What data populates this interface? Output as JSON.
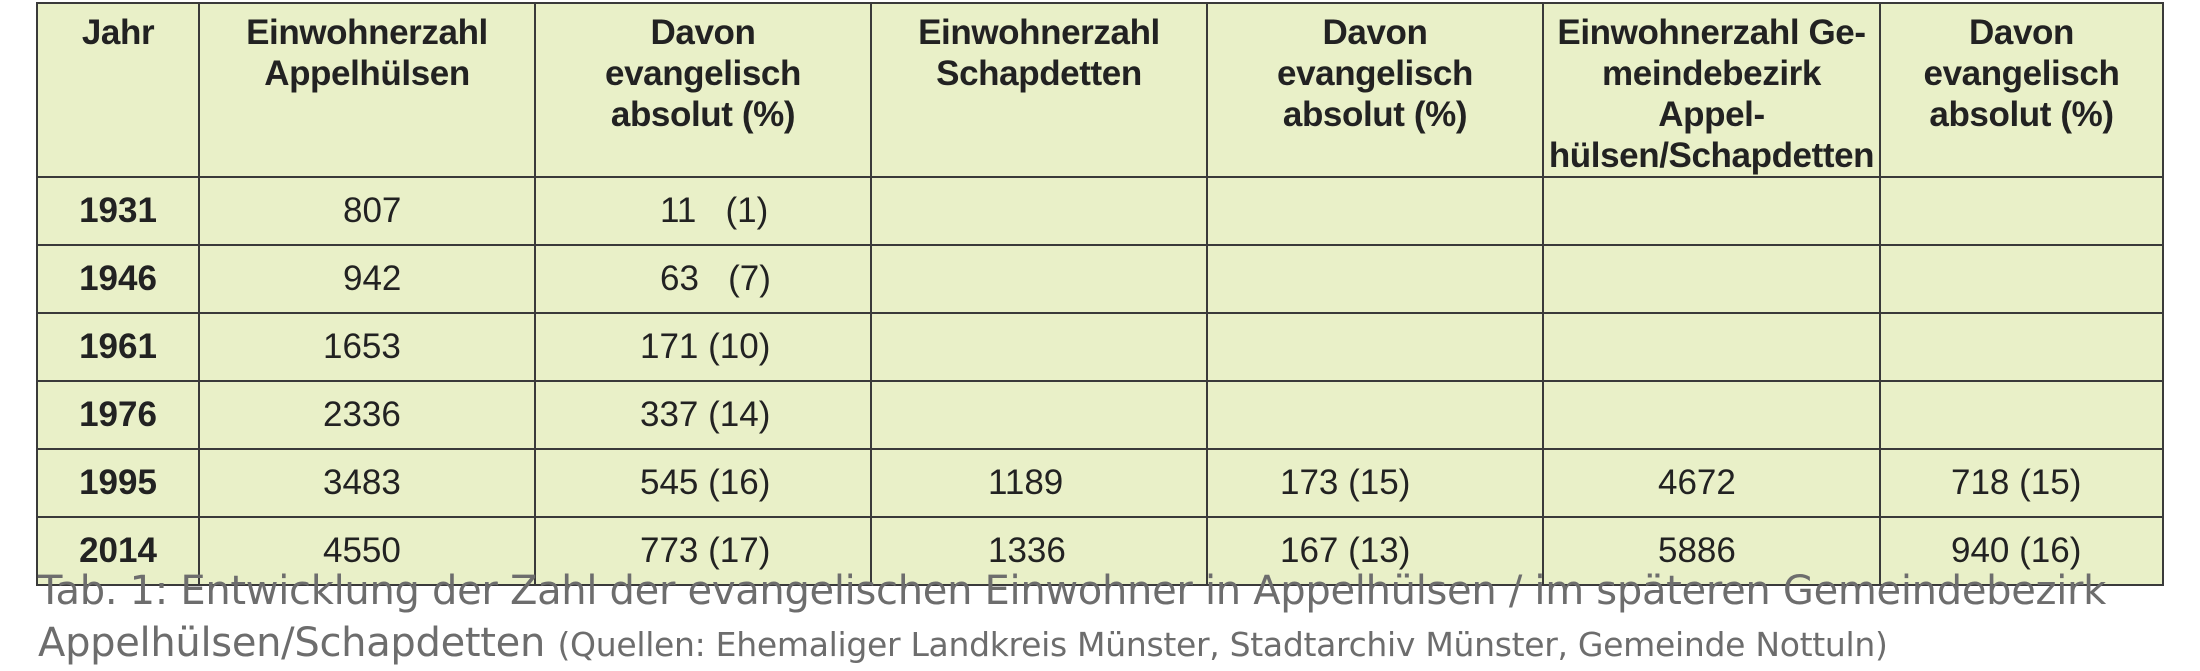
{
  "table": {
    "headers": [
      "Jahr",
      "Einwohnerzahl\nAppelhülsen",
      "Davon\nevangelisch\nabsolut (%)",
      "Einwohnerzahl\nSchapdetten",
      "Davon\nevangelisch\nabsolut (%)",
      "Einwohnerzahl Ge-\nmeindebezirk Appel-\nhülsen/Schapdetten",
      "Davon\nevangelisch\nabsolut (%)"
    ],
    "rows": [
      {
        "year": "1931",
        "c1": "807",
        "c2": "11   (1)",
        "c3": "",
        "c4": "",
        "c5": "",
        "c6": ""
      },
      {
        "year": "1946",
        "c1": "942",
        "c2": "63   (7)",
        "c3": "",
        "c4": "",
        "c5": "",
        "c6": ""
      },
      {
        "year": "1961",
        "c1": "1653",
        "c2": "171 (10)",
        "c3": "",
        "c4": "",
        "c5": "",
        "c6": ""
      },
      {
        "year": "1976",
        "c1": "2336",
        "c2": "337 (14)",
        "c3": "",
        "c4": "",
        "c5": "",
        "c6": ""
      },
      {
        "year": "1995",
        "c1": "3483",
        "c2": "545 (16)",
        "c3": "1189",
        "c4": "173 (15)",
        "c5": "4672",
        "c6": "718 (15)"
      },
      {
        "year": "2014",
        "c1": "4550",
        "c2": "773 (17)",
        "c3": "1336",
        "c4": "167 (13)",
        "c5": "5886",
        "c6": "940 (16)"
      }
    ]
  },
  "caption": {
    "main": "Tab. 1: Entwicklung der Zahl der evangelischen Einwohner in Appelhülsen / im späteren Gemeindebezirk Appelhülsen/Schapdetten",
    "sources": "(Quellen: Ehemaliger Landkreis Münster, Stadtarchiv Münster, Gemeinde Nottuln)"
  },
  "colors": {
    "cell_background": "#e9f0c8",
    "border": "#3a3a3a",
    "caption_text": "#6d6d6d"
  }
}
